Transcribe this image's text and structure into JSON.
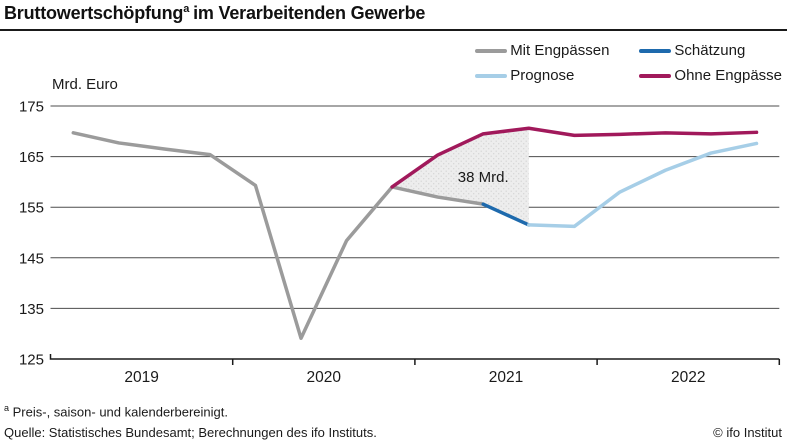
{
  "title": {
    "text_main": "Bruttowertschöpfung",
    "superscript": "a",
    "text_rest": "im Verarbeitenden Gewerbe"
  },
  "axis_unit_label": "Mrd. Euro",
  "footnotes": {
    "note_superscript": "a",
    "note_text": "Preis-, saison- und kalenderbereinigt.",
    "source": "Quelle: Statistisches Bundesamt; Berechnungen des ifo Instituts.",
    "copyright": "© ifo Institut"
  },
  "chart_data": {
    "type": "line",
    "title": "Bruttowertschöpfung im Verarbeitenden Gewerbe",
    "ylabel": "Mrd. Euro",
    "ylim": [
      125,
      175
    ],
    "yticks": [
      125,
      135,
      145,
      155,
      165,
      175
    ],
    "xticks": [
      "2019",
      "2020",
      "2021",
      "2022"
    ],
    "grid": true,
    "legend_position": "top-right",
    "categories": [
      "2019 Q1",
      "2019 Q2",
      "2019 Q3",
      "2019 Q4",
      "2020 Q1",
      "2020 Q2",
      "2020 Q3",
      "2020 Q4",
      "2021 Q1",
      "2021 Q2",
      "2021 Q3",
      "2021 Q4",
      "2022 Q1",
      "2022 Q2",
      "2022 Q3",
      "2022 Q4"
    ],
    "series": [
      {
        "name": "Mit Engpässen",
        "color": "#9b9b9b",
        "start_index": 0,
        "values": [
          169.7,
          167.7,
          166.5,
          165.4,
          159.3,
          129.1,
          148.4,
          159.0,
          157.0,
          155.6
        ]
      },
      {
        "name": "Schätzung",
        "color": "#1e6aad",
        "start_index": 9,
        "values": [
          155.6,
          151.5
        ]
      },
      {
        "name": "Prognose",
        "color": "#a6cee7",
        "start_index": 10,
        "values": [
          151.5,
          151.2,
          158.0,
          162.3,
          165.7,
          167.6
        ]
      },
      {
        "name": "Ohne Engpässe",
        "color": "#a1195b",
        "start_index": 7,
        "values": [
          159.0,
          165.3,
          169.5,
          170.6,
          169.2,
          169.4,
          169.7,
          169.5,
          169.8
        ]
      }
    ],
    "shaded_region": {
      "top_series": "Ohne Engpässe",
      "from_index": 7,
      "to_index": 10,
      "label": "38 Mrd."
    },
    "annotation": {
      "text": "38 Mrd.",
      "x_index": 9,
      "y_value": 161
    },
    "style": {
      "grid_color": "#4d4d4d",
      "axis_color": "#1a1a1a",
      "text_color": "#1a1a1a",
      "shade_fill": "#ededed",
      "shade_dot": "#d5d5d5"
    }
  }
}
